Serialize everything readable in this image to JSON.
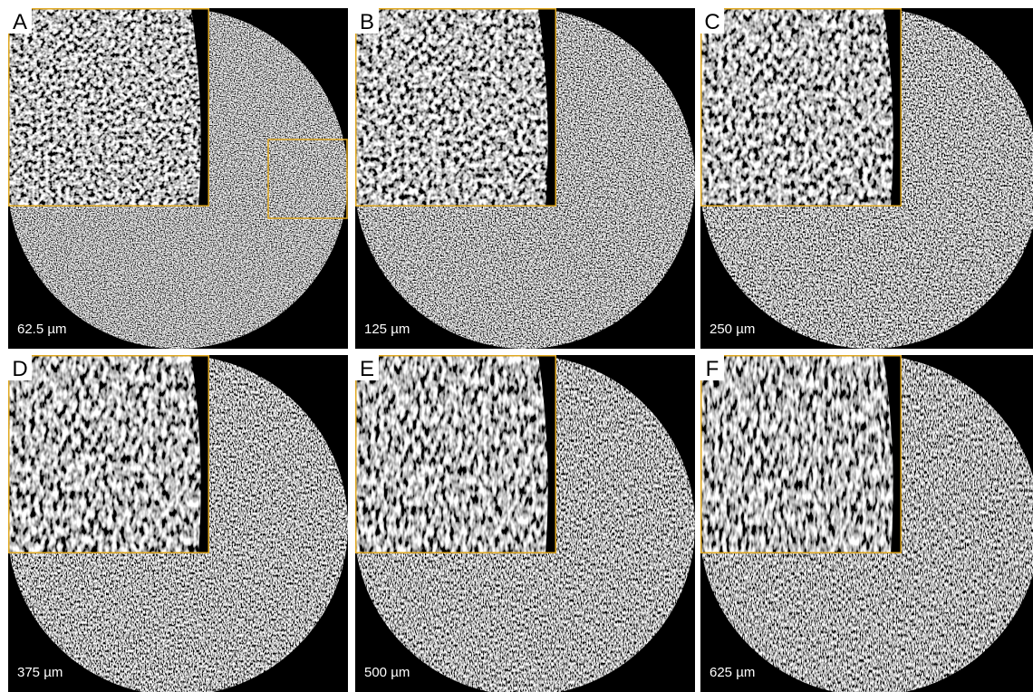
{
  "panels": [
    {
      "letter": "A",
      "scale": "62.5 µm"
    },
    {
      "letter": "B",
      "scale": "125 µm"
    },
    {
      "letter": "C",
      "scale": "250 µm"
    },
    {
      "letter": "D",
      "scale": "375 µm"
    },
    {
      "letter": "E",
      "scale": "500 µm"
    },
    {
      "letter": "F",
      "scale": "625 µm"
    }
  ]
}
